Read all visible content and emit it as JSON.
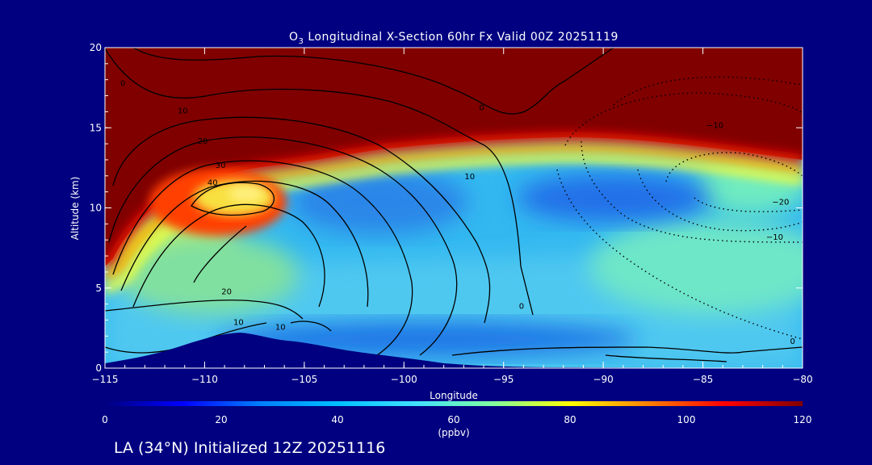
{
  "chart_data": {
    "type": "heatmap",
    "title_main": "O",
    "title_sub": "3",
    "title_rest": " Longitudinal X-Section 60hr  Fx Valid 00Z 20251119",
    "xlabel": "Longitude",
    "ylabel": "Altitude (km)",
    "xlim": [
      -115,
      -80
    ],
    "ylim": [
      0,
      20
    ],
    "x_ticks": [
      {
        "value": -115,
        "label": "−115"
      },
      {
        "value": -110,
        "label": "−110"
      },
      {
        "value": -105,
        "label": "−105"
      },
      {
        "value": -100,
        "label": "−100"
      },
      {
        "value": -95,
        "label": "−95"
      },
      {
        "value": -90,
        "label": "−90"
      },
      {
        "value": -85,
        "label": "−85"
      },
      {
        "value": -80,
        "label": "−80"
      }
    ],
    "y_ticks": [
      {
        "value": 0,
        "label": "0"
      },
      {
        "value": 5,
        "label": "5"
      },
      {
        "value": 10,
        "label": "10"
      },
      {
        "value": 15,
        "label": "15"
      },
      {
        "value": 20,
        "label": "20"
      }
    ],
    "colorbar": {
      "range": [
        0,
        120
      ],
      "unit_label": "(ppbv)",
      "ticks": [
        {
          "value": 0,
          "label": "0"
        },
        {
          "value": 20,
          "label": "20"
        },
        {
          "value": 40,
          "label": "40"
        },
        {
          "value": 60,
          "label": "60"
        },
        {
          "value": 80,
          "label": "80"
        },
        {
          "value": 100,
          "label": "100"
        },
        {
          "value": 120,
          "label": "120"
        }
      ],
      "colors": [
        "#000080",
        "#0000ff",
        "#0080ff",
        "#00c0ff",
        "#40e0ff",
        "#80ffa0",
        "#ffff00",
        "#ff8000",
        "#ff0000",
        "#800000"
      ]
    },
    "contour_labels": [
      {
        "text": "0",
        "x": -114.1,
        "y": 17.6
      },
      {
        "text": "10",
        "x": -111.1,
        "y": 15.9
      },
      {
        "text": "20",
        "x": -110.1,
        "y": 14.0
      },
      {
        "text": "30",
        "x": -109.2,
        "y": 12.5
      },
      {
        "text": "40",
        "x": -109.6,
        "y": 11.4
      },
      {
        "text": "20",
        "x": -108.9,
        "y": 4.6
      },
      {
        "text": "10",
        "x": -108.3,
        "y": 2.7
      },
      {
        "text": "10",
        "x": -106.2,
        "y": 2.4
      },
      {
        "text": "10",
        "x": -96.7,
        "y": 11.8
      },
      {
        "text": "0",
        "x": -96.1,
        "y": 16.1
      },
      {
        "text": "0",
        "x": -94.1,
        "y": 3.7
      },
      {
        "text": "−10",
        "x": -84.4,
        "y": 15.0
      },
      {
        "text": "−20",
        "x": -81.1,
        "y": 10.2
      },
      {
        "text": "−10",
        "x": -81.4,
        "y": 8.0
      },
      {
        "text": "0",
        "x": -80.5,
        "y": 1.5
      }
    ],
    "terrain_peak_longitude": -108.2,
    "terrain_peak_altitude_km": 2.1
  },
  "footer": {
    "text": "LA (34°N) Initialized 12Z 20251116"
  }
}
